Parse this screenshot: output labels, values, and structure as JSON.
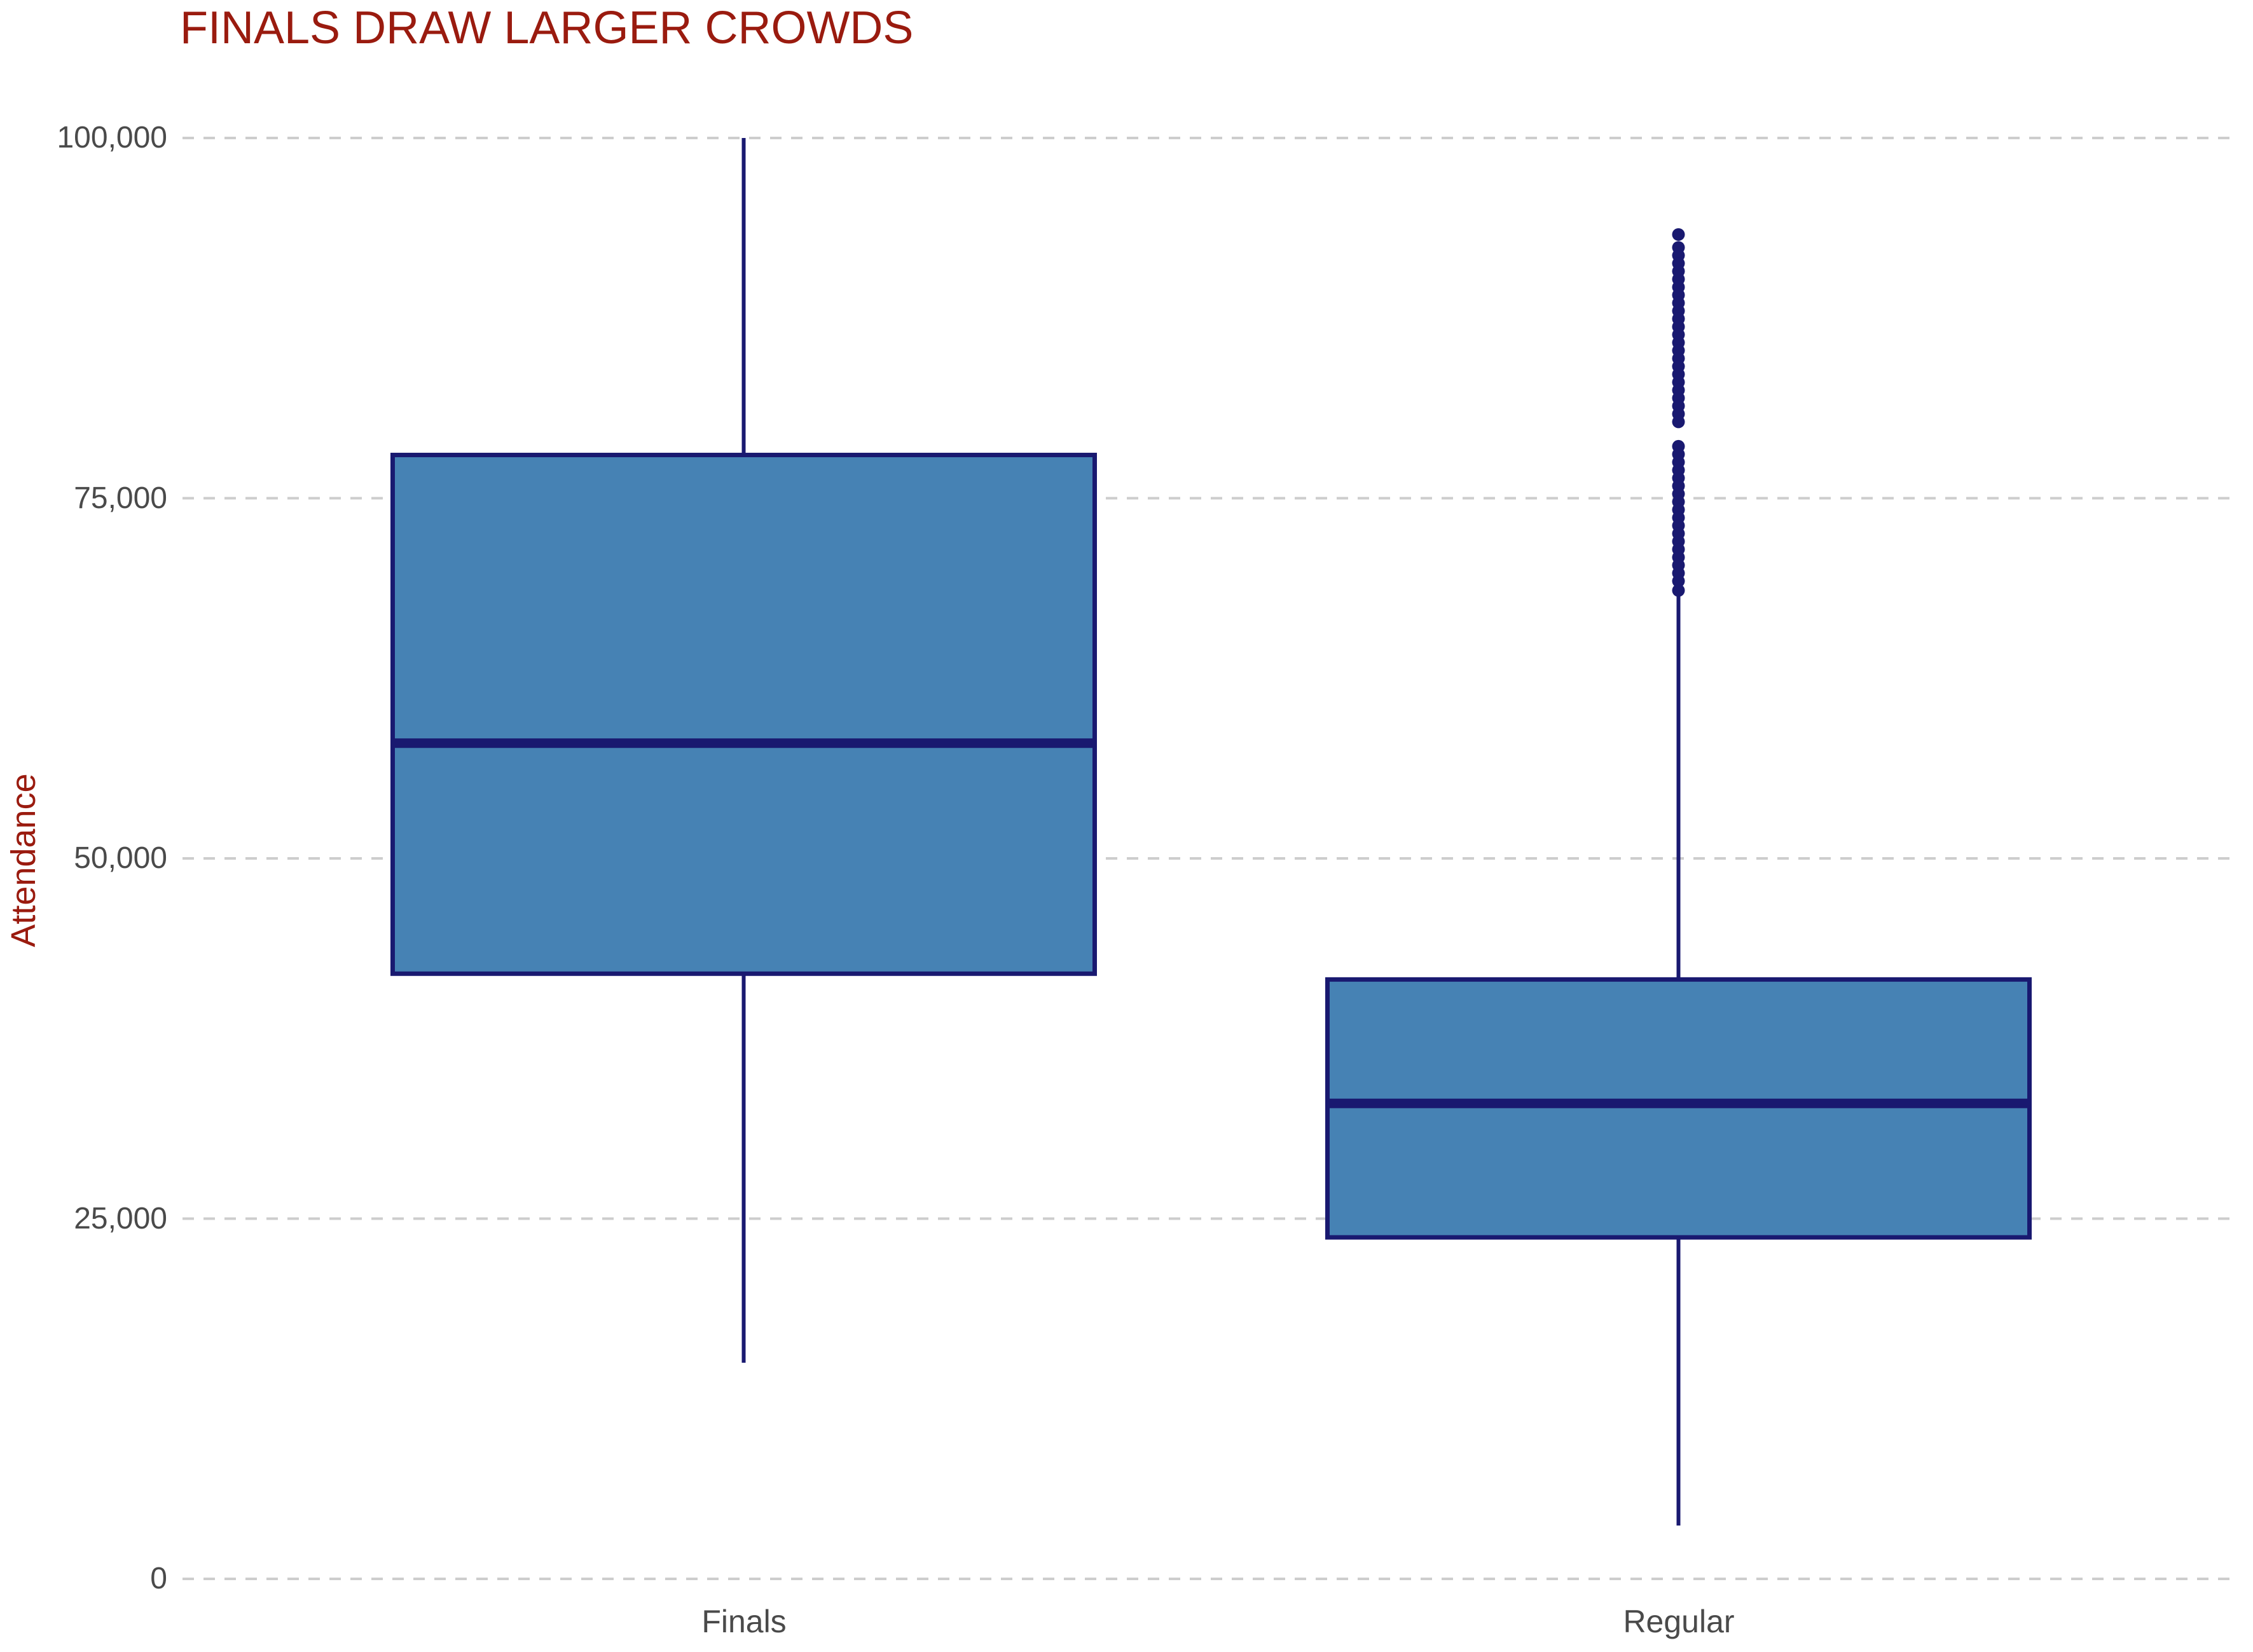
{
  "colors": {
    "title": "#9A1B0F",
    "axis_title": "#9A1B0F",
    "tick_label": "#4A4A4A",
    "gridline": "#CDCDCD",
    "box_fill": "#4682B4",
    "box_border": "#191970"
  },
  "chart_data": {
    "type": "boxplot",
    "title": "FINALS DRAW LARGER CROWDS",
    "ylabel": "Attendance",
    "xlabel": "",
    "categories": [
      "Finals",
      "Regular"
    ],
    "ylim": [
      0,
      100000
    ],
    "grid": {
      "horizontal": true,
      "style": "dashed"
    },
    "legend": "none",
    "yticks": [
      {
        "value": 100000,
        "label": "100,000"
      },
      {
        "value": 75000,
        "label": "75,000"
      },
      {
        "value": 50000,
        "label": "50,000"
      },
      {
        "value": 25000,
        "label": "25,000"
      },
      {
        "value": 0,
        "label": "0"
      }
    ],
    "series": [
      {
        "name": "Finals",
        "whisker_low": 15000,
        "q1": 42000,
        "median": 58000,
        "q3": 78000,
        "whisker_high": 100000,
        "outliers": []
      },
      {
        "name": "Regular",
        "whisker_low": 3700,
        "q1": 23700,
        "median": 33000,
        "q3": 41600,
        "whisker_high": 68500,
        "outliers": [
          93300,
          92400,
          91850,
          91300,
          90750,
          90200,
          89650,
          89100,
          88550,
          88000,
          87450,
          86900,
          86350,
          85800,
          85250,
          84700,
          84150,
          83600,
          83050,
          82500,
          81950,
          81400,
          80850,
          80300,
          78600,
          78050,
          77500,
          76950,
          76400,
          75850,
          75300,
          74750,
          74200,
          73650,
          73100,
          72550,
          72000,
          71450,
          70900,
          70350,
          69800,
          69250,
          68600
        ]
      }
    ]
  }
}
